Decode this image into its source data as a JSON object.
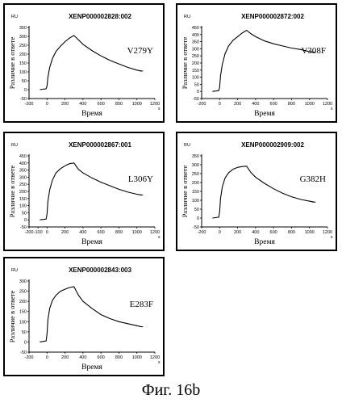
{
  "figure_caption": "Фиг. 16b",
  "chart_data": [
    {
      "type": "line",
      "title": "XENP000002828:002",
      "annotation": "V279Y",
      "xlabel": "Время",
      "ylabel": "Различие в ответе",
      "yunit": "RU",
      "xunit": "s",
      "xlim": [
        -200,
        1200
      ],
      "ylim": [
        -50,
        350
      ],
      "xticks": [
        "-200",
        "0",
        "200",
        "400",
        "600",
        "800",
        "1000",
        "1200"
      ],
      "yticks": [
        "-50",
        "0",
        "50",
        "100",
        "150",
        "200",
        "250",
        "300",
        "350"
      ],
      "series": [
        {
          "x": [
            -80,
            -10,
            0,
            10,
            30,
            60,
            100,
            150,
            200,
            250,
            300,
            350,
            400,
            500,
            600,
            700,
            800,
            900,
            1000,
            1050
          ],
          "y": [
            0,
            5,
            20,
            70,
            125,
            175,
            215,
            245,
            270,
            290,
            305,
            280,
            255,
            220,
            190,
            165,
            145,
            125,
            110,
            105
          ]
        }
      ]
    },
    {
      "type": "line",
      "title": "XENP000002872:002",
      "annotation": "V308F",
      "xlabel": "Время",
      "ylabel": "Различие в ответе",
      "yunit": "RU",
      "xunit": "s",
      "xlim": [
        -200,
        1200
      ],
      "ylim": [
        -50,
        450
      ],
      "xticks": [
        "-200",
        "0",
        "200",
        "400",
        "600",
        "800",
        "1000",
        "1200"
      ],
      "yticks": [
        "-50",
        "0",
        "50",
        "100",
        "150",
        "200",
        "250",
        "300",
        "350",
        "400",
        "450"
      ],
      "series": [
        {
          "x": [
            -80,
            -10,
            0,
            10,
            30,
            60,
            100,
            150,
            200,
            250,
            300,
            350,
            400,
            500,
            600,
            700,
            800,
            900,
            1000,
            1050
          ],
          "y": [
            0,
            5,
            30,
            110,
            190,
            265,
            320,
            360,
            385,
            410,
            430,
            405,
            385,
            355,
            335,
            320,
            305,
            295,
            280,
            275
          ]
        }
      ]
    },
    {
      "type": "line",
      "title": "XENP000002867:001",
      "annotation": "L306Y",
      "xlabel": "Время",
      "ylabel": "Различие в ответе",
      "yunit": "RU",
      "xunit": "s",
      "xlim": [
        -200,
        1200
      ],
      "ylim": [
        -50,
        450
      ],
      "xticks": [
        "-200",
        "-100",
        "0",
        "200",
        "400",
        "600",
        "800",
        "1000",
        "1200"
      ],
      "yticks": [
        "-50",
        "0",
        "50",
        "100",
        "150",
        "200",
        "250",
        "300",
        "350",
        "400",
        "450"
      ],
      "series": [
        {
          "x": [
            -80,
            -10,
            0,
            10,
            30,
            60,
            100,
            150,
            200,
            250,
            300,
            350,
            400,
            500,
            600,
            700,
            800,
            900,
            1000,
            1050
          ],
          "y": [
            0,
            5,
            40,
            130,
            210,
            280,
            330,
            360,
            380,
            395,
            400,
            355,
            330,
            295,
            265,
            240,
            215,
            195,
            180,
            175
          ]
        }
      ]
    },
    {
      "type": "line",
      "title": "XENP000002909:002",
      "annotation": "G382H",
      "xlabel": "Время",
      "ylabel": "Различие в ответе",
      "yunit": "RU",
      "xunit": "s",
      "xlim": [
        -200,
        1200
      ],
      "ylim": [
        -50,
        350
      ],
      "xticks": [
        "-200",
        "0",
        "200",
        "400",
        "600",
        "800",
        "1000",
        "1200"
      ],
      "yticks": [
        "-50",
        "0",
        "50",
        "100",
        "150",
        "200",
        "250",
        "300",
        "350"
      ],
      "series": [
        {
          "x": [
            -80,
            -10,
            0,
            10,
            30,
            60,
            100,
            150,
            200,
            250,
            300,
            350,
            400,
            500,
            600,
            700,
            800,
            900,
            1000,
            1050
          ],
          "y": [
            0,
            5,
            35,
            110,
            175,
            225,
            255,
            275,
            285,
            290,
            292,
            255,
            230,
            195,
            165,
            140,
            120,
            105,
            95,
            90
          ]
        }
      ]
    },
    {
      "type": "line",
      "title": "XENP000002843:003",
      "annotation": "E283F",
      "xlabel": "Время",
      "ylabel": "Различие в ответе",
      "yunit": "RU",
      "xunit": "s",
      "xlim": [
        -200,
        1200
      ],
      "ylim": [
        -50,
        300
      ],
      "xticks": [
        "-200",
        "0",
        "200",
        "400",
        "600",
        "800",
        "1000",
        "1200"
      ],
      "yticks": [
        "-50",
        "0",
        "50",
        "100",
        "150",
        "200",
        "250",
        "300"
      ],
      "series": [
        {
          "x": [
            -80,
            -10,
            0,
            10,
            30,
            60,
            100,
            150,
            200,
            250,
            300,
            350,
            400,
            500,
            600,
            700,
            800,
            900,
            1000,
            1050
          ],
          "y": [
            0,
            5,
            40,
            110,
            165,
            205,
            230,
            250,
            260,
            268,
            272,
            230,
            200,
            165,
            135,
            115,
            100,
            90,
            80,
            75
          ]
        }
      ]
    }
  ]
}
